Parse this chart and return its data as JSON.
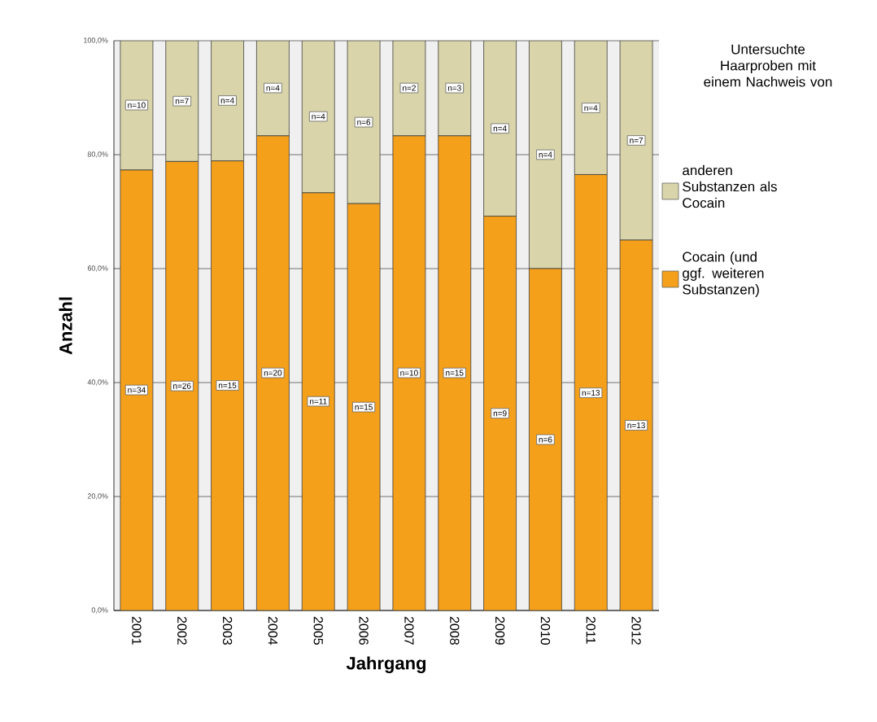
{
  "chart_data": {
    "type": "bar",
    "stacked": true,
    "xlabel": "Jahrgang",
    "ylabel": "Anzahl",
    "legend_title": "Untersuchte Haarproben mit einem Nachweis von",
    "categories": [
      "2001",
      "2002",
      "2003",
      "2004",
      "2005",
      "2006",
      "2007",
      "2008",
      "2009",
      "2010",
      "2011",
      "2012"
    ],
    "series": [
      {
        "name": "Cocain (und ggf. weiteren Substanzen)",
        "color": "#f5a01a",
        "values": [
          77.3,
          78.8,
          78.9,
          83.3,
          73.3,
          71.4,
          83.3,
          83.3,
          69.2,
          60.0,
          76.5,
          65.0
        ]
      },
      {
        "name": "anderen Substanzen als Cocain",
        "color": "#d9d4a9",
        "values": [
          22.7,
          21.2,
          21.1,
          16.7,
          26.7,
          28.6,
          16.7,
          16.7,
          30.8,
          40.0,
          23.5,
          35.0
        ]
      }
    ],
    "annotations": [
      {
        "text": "n=34",
        "x": "2001",
        "y": 38.7
      },
      {
        "text": "n=26",
        "x": "2002",
        "y": 39.4
      },
      {
        "text": "n=15",
        "x": "2003",
        "y": 39.5
      },
      {
        "text": "n=20",
        "x": "2004",
        "y": 41.7
      },
      {
        "text": "n=11",
        "x": "2005",
        "y": 36.7
      },
      {
        "text": "n=15",
        "x": "2006",
        "y": 35.7
      },
      {
        "text": "n=10",
        "x": "2007",
        "y": 41.7
      },
      {
        "text": "n=15",
        "x": "2008",
        "y": 41.7
      },
      {
        "text": "n=9",
        "x": "2009",
        "y": 34.6
      },
      {
        "text": "n=6",
        "x": "2010",
        "y": 30.0
      },
      {
        "text": "n=13",
        "x": "2011",
        "y": 38.2
      },
      {
        "text": "n=13",
        "x": "2012",
        "y": 32.5
      },
      {
        "text": "n=10",
        "x": "2001",
        "y": 88.7
      },
      {
        "text": "n=7",
        "x": "2002",
        "y": 89.4
      },
      {
        "text": "n=4",
        "x": "2003",
        "y": 89.5
      },
      {
        "text": "n=4",
        "x": "2004",
        "y": 91.7
      },
      {
        "text": "n=4",
        "x": "2005",
        "y": 86.7
      },
      {
        "text": "n=6",
        "x": "2006",
        "y": 85.7
      },
      {
        "text": "n=2",
        "x": "2007",
        "y": 91.7
      },
      {
        "text": "n=3",
        "x": "2008",
        "y": 91.7
      },
      {
        "text": "n=4",
        "x": "2009",
        "y": 84.6
      },
      {
        "text": "n=4",
        "x": "2010",
        "y": 80.0
      },
      {
        "text": "n=4",
        "x": "2011",
        "y": 88.2
      },
      {
        "text": "n=7",
        "x": "2012",
        "y": 82.5
      }
    ],
    "ylim": [
      0,
      100
    ],
    "yticks": [
      {
        "value": 0,
        "label": "0,0%"
      },
      {
        "value": 20,
        "label": "20,0%"
      },
      {
        "value": 40,
        "label": "40,0%"
      },
      {
        "value": 60,
        "label": "60,0%"
      },
      {
        "value": 80,
        "label": "80,0%"
      },
      {
        "value": 100,
        "label": "100,0%"
      }
    ],
    "grid": "y",
    "legend": "right"
  }
}
